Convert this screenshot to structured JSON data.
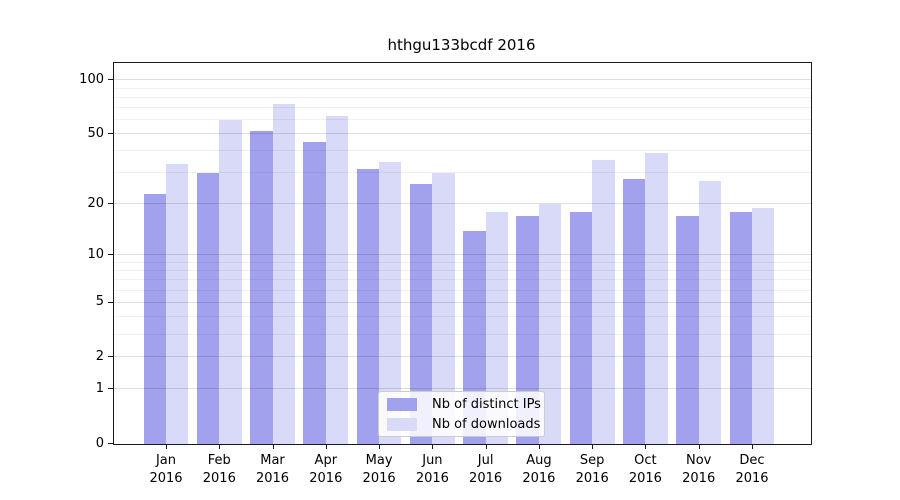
{
  "title": "hthgu133bcdf 2016",
  "chart_data": {
    "type": "bar",
    "title": "hthgu133bcdf 2016",
    "categories": [
      "Jan 2016",
      "Feb 2016",
      "Mar 2016",
      "Apr 2016",
      "May 2016",
      "Jun 2016",
      "Jul 2016",
      "Aug 2016",
      "Sep 2016",
      "Oct 2016",
      "Nov 2016",
      "Dec 2016"
    ],
    "series": [
      {
        "name": "Nb of distinct IPs",
        "color": "#a1a1ee",
        "values": [
          23,
          30,
          52,
          45,
          32,
          26,
          14,
          17,
          18,
          28,
          17,
          18
        ]
      },
      {
        "name": "Nb of downloads",
        "color": "#d9d9f8",
        "values": [
          34,
          60,
          74,
          63,
          35,
          30,
          18,
          20,
          36,
          39,
          27,
          19
        ]
      }
    ],
    "xlabel": "",
    "ylabel": "",
    "yscale": "log1p",
    "ylim": [
      0,
      125
    ],
    "y_major_ticks": [
      0,
      1,
      2,
      5,
      10,
      20,
      50,
      100
    ],
    "y_minor_gridlines": [
      3,
      4,
      6,
      7,
      8,
      9,
      30,
      40,
      60,
      70,
      80,
      90
    ],
    "grid": true,
    "legend_position": "lower center"
  },
  "legend": {
    "items": [
      "Nb of distinct IPs",
      "Nb of downloads"
    ]
  }
}
